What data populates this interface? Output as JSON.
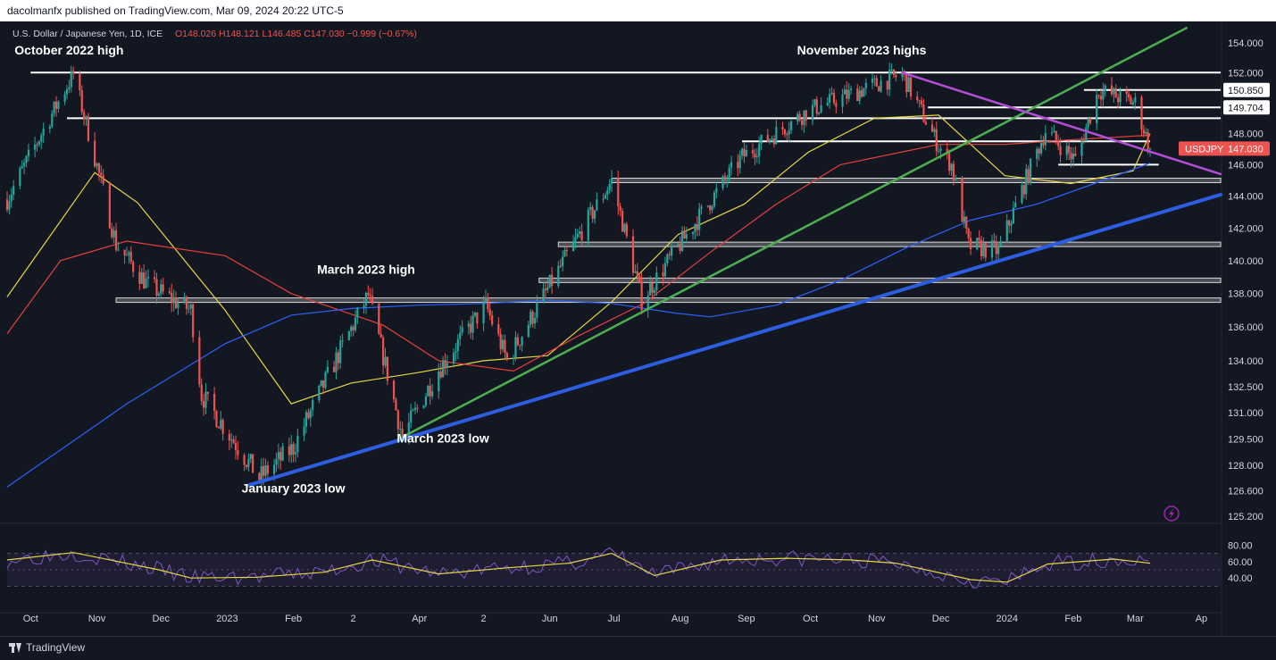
{
  "header": {
    "publisher": "dacolmanfx published on TradingView.com, Mar 09, 2024 20:22 UTC-5"
  },
  "footer": {
    "brand": "TradingView"
  },
  "legend": {
    "symbol": "U.S. Dollar / Japanese Yen, 1D, ICE",
    "ohlc": "O148.026  H148.121  L146.485  C147.030  −0.999 (−0.67%)"
  },
  "colors": {
    "background": "#131722",
    "up": "#26a69a",
    "down": "#ef5350",
    "ma_fast": "#e6d743",
    "ma_mid": "#e8403a",
    "ma_slow": "#2962ff",
    "trend_green": "#4caf50",
    "trend_blue": "#2d5ee0",
    "trend_purple": "#b44ed6",
    "rsi": "#7e57c2"
  },
  "chart_data": {
    "type": "candlestick",
    "instrument": "USDJPY",
    "last_price": "147.030",
    "price_axis": {
      "min": 124.8,
      "max": 155.2,
      "scale": "log",
      "tick_labels": [
        "154.000",
        "152.000",
        "150.850",
        "149.704",
        "148.000",
        "146.000",
        "144.000",
        "142.000",
        "140.000",
        "138.000",
        "136.000",
        "134.000",
        "132.500",
        "131.000",
        "129.500",
        "128.000",
        "126.600",
        "125.200"
      ]
    },
    "time_axis": {
      "start": "2022-09-20",
      "end": "2024-04-10",
      "labels": [
        {
          "text": "Oct",
          "date": "2022-10-01"
        },
        {
          "text": "Nov",
          "date": "2022-11-01"
        },
        {
          "text": "Dec",
          "date": "2022-12-01"
        },
        {
          "text": "2023",
          "date": "2023-01-01"
        },
        {
          "text": "Feb",
          "date": "2023-02-01"
        },
        {
          "text": "2",
          "date": "2023-03-01"
        },
        {
          "text": "Apr",
          "date": "2023-04-01"
        },
        {
          "text": "2",
          "date": "2023-05-01"
        },
        {
          "text": "Jun",
          "date": "2023-06-01"
        },
        {
          "text": "Jul",
          "date": "2023-07-01"
        },
        {
          "text": "Aug",
          "date": "2023-08-01"
        },
        {
          "text": "Sep",
          "date": "2023-09-01"
        },
        {
          "text": "Oct",
          "date": "2023-10-01"
        },
        {
          "text": "Nov",
          "date": "2023-11-01"
        },
        {
          "text": "Dec",
          "date": "2023-12-01"
        },
        {
          "text": "2024",
          "date": "2024-01-01"
        },
        {
          "text": "Feb",
          "date": "2024-02-01"
        },
        {
          "text": "Mar",
          "date": "2024-03-01"
        },
        {
          "text": "Ap",
          "date": "2024-04-01"
        }
      ]
    },
    "price_path": [
      [
        "2022-09-20",
        143.8
      ],
      [
        "2022-10-21",
        151.9
      ],
      [
        "2022-11-10",
        141.0
      ],
      [
        "2022-11-25",
        138.5
      ],
      [
        "2022-12-15",
        137.0
      ],
      [
        "2022-12-20",
        132.0
      ],
      [
        "2023-01-16",
        127.3
      ],
      [
        "2023-02-01",
        129.0
      ],
      [
        "2023-03-08",
        137.9
      ],
      [
        "2023-03-24",
        129.6
      ],
      [
        "2023-04-10",
        133.5
      ],
      [
        "2023-05-02",
        137.3
      ],
      [
        "2023-05-12",
        134.0
      ],
      [
        "2023-06-30",
        145.0
      ],
      [
        "2023-07-14",
        137.6
      ],
      [
        "2023-08-30",
        146.5
      ],
      [
        "2023-09-30",
        149.5
      ],
      [
        "2023-11-13",
        151.9
      ],
      [
        "2023-11-30",
        147.2
      ],
      [
        "2023-12-06",
        146.0
      ],
      [
        "2023-12-14",
        140.9
      ],
      [
        "2023-12-28",
        140.6
      ],
      [
        "2024-01-19",
        148.2
      ],
      [
        "2024-02-02",
        146.3
      ],
      [
        "2024-02-13",
        150.85
      ],
      [
        "2024-03-01",
        150.0
      ],
      [
        "2024-03-08",
        147.03
      ]
    ],
    "moving_averages": [
      {
        "name": "fast",
        "points": [
          [
            "2022-09-20",
            137.8
          ],
          [
            "2022-10-31",
            145.5
          ],
          [
            "2022-11-20",
            143.6
          ],
          [
            "2022-12-31",
            137.0
          ],
          [
            "2023-01-31",
            131.5
          ],
          [
            "2023-02-28",
            132.7
          ],
          [
            "2023-03-31",
            133.3
          ],
          [
            "2023-05-01",
            134.0
          ],
          [
            "2023-05-31",
            134.3
          ],
          [
            "2023-06-30",
            137.5
          ],
          [
            "2023-07-31",
            141.6
          ],
          [
            "2023-08-31",
            143.5
          ],
          [
            "2023-09-30",
            146.8
          ],
          [
            "2023-10-31",
            149.0
          ],
          [
            "2023-11-30",
            149.2
          ],
          [
            "2023-12-31",
            145.3
          ],
          [
            "2024-01-31",
            144.8
          ],
          [
            "2024-02-29",
            145.6
          ],
          [
            "2024-03-08",
            148.0
          ]
        ]
      },
      {
        "name": "mid",
        "points": [
          [
            "2022-09-20",
            135.6
          ],
          [
            "2022-10-15",
            140.0
          ],
          [
            "2022-11-15",
            141.2
          ],
          [
            "2022-12-31",
            140.3
          ],
          [
            "2023-01-31",
            138.0
          ],
          [
            "2023-03-15",
            136.1
          ],
          [
            "2023-04-10",
            134.0
          ],
          [
            "2023-05-15",
            133.4
          ],
          [
            "2023-06-15",
            135.5
          ],
          [
            "2023-07-15",
            137.4
          ],
          [
            "2023-08-15",
            140.5
          ],
          [
            "2023-09-15",
            143.5
          ],
          [
            "2023-10-15",
            146.0
          ],
          [
            "2023-11-30",
            147.3
          ],
          [
            "2023-12-31",
            147.3
          ],
          [
            "2024-01-31",
            147.6
          ],
          [
            "2024-03-08",
            147.9
          ]
        ]
      },
      {
        "name": "slow",
        "points": [
          [
            "2022-09-20",
            126.8
          ],
          [
            "2022-11-15",
            131.5
          ],
          [
            "2022-12-31",
            135.0
          ],
          [
            "2023-01-31",
            136.7
          ],
          [
            "2023-02-28",
            137.1
          ],
          [
            "2023-04-01",
            137.3
          ],
          [
            "2023-05-01",
            137.4
          ],
          [
            "2023-05-31",
            137.6
          ],
          [
            "2023-06-30",
            137.4
          ],
          [
            "2023-07-31",
            136.8
          ],
          [
            "2023-08-15",
            136.6
          ],
          [
            "2023-09-15",
            137.3
          ],
          [
            "2023-10-15",
            138.8
          ],
          [
            "2023-11-15",
            140.8
          ],
          [
            "2023-12-15",
            142.5
          ],
          [
            "2024-01-15",
            143.5
          ],
          [
            "2024-02-15",
            145.0
          ],
          [
            "2024-03-08",
            146.1
          ]
        ]
      }
    ],
    "trendlines": [
      {
        "color": "green",
        "from": [
          "2023-03-24",
          129.6
        ],
        "to": [
          "2024-03-25",
          155.0
        ]
      },
      {
        "color": "blue",
        "from": [
          "2023-01-11",
          126.9
        ],
        "to": [
          "2024-04-10",
          144.1
        ]
      },
      {
        "color": "purple",
        "from": [
          "2023-11-13",
          152.0
        ],
        "to": [
          "2024-04-10",
          145.4
        ]
      }
    ],
    "horizontal_lines": [
      {
        "price": 152.001,
        "label": "152.001",
        "from": "2022-10-01",
        "to": "2024-04-10",
        "style": "white"
      },
      {
        "price": 150.85,
        "label": "150.850",
        "from": "2024-02-06",
        "to": "2024-04-10",
        "style": "white"
      },
      {
        "price": 149.704,
        "label": "149.704",
        "from": "2023-11-25",
        "to": "2024-04-10",
        "style": "white"
      },
      {
        "price": 149.0,
        "from": "2022-10-18",
        "to": "2024-04-10",
        "style": "white"
      },
      {
        "price": 147.5,
        "from": "2023-08-30",
        "to": "2024-03-08",
        "style": "white"
      },
      {
        "price": 146.0,
        "from": "2024-01-25",
        "to": "2024-03-12",
        "style": "white"
      },
      {
        "price": 145.0,
        "from": "2023-06-30",
        "to": "2024-04-10",
        "style": "band"
      },
      {
        "price": 141.0,
        "from": "2023-06-05",
        "to": "2024-04-10",
        "style": "band"
      },
      {
        "price": 138.8,
        "from": "2023-05-27",
        "to": "2024-04-10",
        "style": "band"
      },
      {
        "price": 137.6,
        "from": "2022-11-10",
        "to": "2024-04-10",
        "style": "band"
      }
    ],
    "annotations": [
      {
        "text": "October 2022 high",
        "date": "2022-10-19",
        "price": 153.2
      },
      {
        "text": "November 2023 highs",
        "date": "2023-10-25",
        "price": 153.2
      },
      {
        "text": "March 2023 high",
        "date": "2023-03-07",
        "price": 139.2
      },
      {
        "text": "March 2023 low",
        "date": "2023-04-12",
        "price": 129.3
      },
      {
        "text": "January 2023 low",
        "date": "2023-02-01",
        "price": 126.5
      }
    ],
    "rsi": {
      "ticks": [
        80,
        60,
        40
      ],
      "overbought": 70,
      "oversold": 30,
      "signal_points": [
        [
          "2022-09-20",
          62
        ],
        [
          "2022-10-21",
          71
        ],
        [
          "2022-11-30",
          50
        ],
        [
          "2022-12-15",
          40
        ],
        [
          "2023-01-15",
          41
        ],
        [
          "2023-02-15",
          47
        ],
        [
          "2023-03-10",
          62
        ],
        [
          "2023-04-10",
          45
        ],
        [
          "2023-05-10",
          52
        ],
        [
          "2023-06-10",
          58
        ],
        [
          "2023-06-30",
          70
        ],
        [
          "2023-07-20",
          43
        ],
        [
          "2023-08-20",
          62
        ],
        [
          "2023-09-20",
          64
        ],
        [
          "2023-10-20",
          62
        ],
        [
          "2023-11-10",
          58
        ],
        [
          "2023-12-15",
          38
        ],
        [
          "2024-01-01",
          35
        ],
        [
          "2024-01-20",
          57
        ],
        [
          "2024-02-20",
          63
        ],
        [
          "2024-03-08",
          58
        ]
      ]
    }
  }
}
